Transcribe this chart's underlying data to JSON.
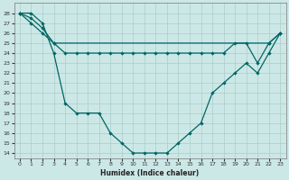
{
  "xlabel": "Humidex (Indice chaleur)",
  "bg_color": "#cce8e6",
  "grid_color": "#aacccc",
  "line_color": "#006666",
  "ylim": [
    13.5,
    29.0
  ],
  "xlim": [
    -0.5,
    23.5
  ],
  "yticks": [
    14,
    15,
    16,
    17,
    18,
    19,
    20,
    21,
    22,
    23,
    24,
    25,
    26,
    27,
    28
  ],
  "xticks": [
    0,
    1,
    2,
    3,
    4,
    5,
    6,
    7,
    8,
    9,
    10,
    11,
    12,
    13,
    14,
    15,
    16,
    17,
    18,
    19,
    20,
    21,
    22,
    23
  ],
  "series1_x": [
    0,
    1,
    2,
    3,
    4,
    5,
    6,
    7,
    8,
    9,
    10,
    11,
    12,
    13,
    14,
    15,
    16,
    17,
    18,
    19,
    20,
    21,
    22,
    23
  ],
  "series1_y": [
    28,
    28,
    27,
    24,
    19,
    18,
    18,
    18,
    16,
    15,
    14,
    14,
    14,
    14,
    15,
    16,
    17,
    20,
    21,
    22,
    23,
    22,
    24,
    26
  ],
  "series2_x": [
    0,
    1,
    2,
    3,
    22,
    23
  ],
  "series2_y": [
    28,
    27.5,
    26.5,
    25,
    25,
    26
  ],
  "series3_x": [
    0,
    1,
    2,
    3,
    4,
    5,
    6,
    7,
    8,
    9,
    10,
    11,
    12,
    13,
    14,
    15,
    16,
    17,
    18,
    19,
    20,
    21,
    22,
    23
  ],
  "series3_y": [
    28,
    27,
    26,
    25,
    24,
    24,
    24,
    24,
    24,
    24,
    24,
    24,
    24,
    24,
    24,
    24,
    24,
    24,
    24,
    25,
    25,
    23,
    25,
    26
  ]
}
